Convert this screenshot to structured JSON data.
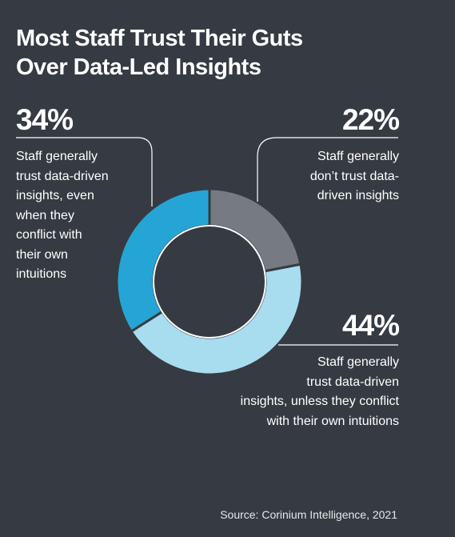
{
  "title_lines": [
    "Most Staff Trust Their Guts",
    "Over Data-Led Insights"
  ],
  "chart_data": {
    "type": "pie",
    "title": "Most Staff Trust Their Guts Over Data-Led Insights",
    "slices": [
      {
        "value": 22,
        "label": "22%",
        "description": "Staff generally don’t trust data-driven insights",
        "color": "#767b82"
      },
      {
        "value": 44,
        "label": "44%",
        "description": "Staff generally trust data-driven insights, unless they conflict with their own intuitions",
        "color": "#a8dcef"
      },
      {
        "value": 34,
        "label": "34%",
        "description": "Staff generally trust data-driven insights, even when they conflict with their own intuitions",
        "color": "#25a5d5"
      }
    ]
  },
  "annotations": {
    "left": {
      "percent": "34%",
      "lines": [
        "Staff generally",
        "trust data-driven",
        "insights, even",
        "when they",
        "conflict with",
        "their own",
        "intuitions"
      ]
    },
    "top_right": {
      "percent": "22%",
      "lines": [
        "Staff generally",
        "don’t trust data-",
        "driven insights"
      ]
    },
    "bottom_right": {
      "percent": "44%",
      "lines": [
        "Staff generally",
        "trust data-driven",
        "insights, unless they conflict",
        "with their own intuitions"
      ]
    }
  },
  "source": "Source: Corinium Intelligence, 2021",
  "colors": {
    "background": "#363b43",
    "ring_inner": "#363b43"
  }
}
